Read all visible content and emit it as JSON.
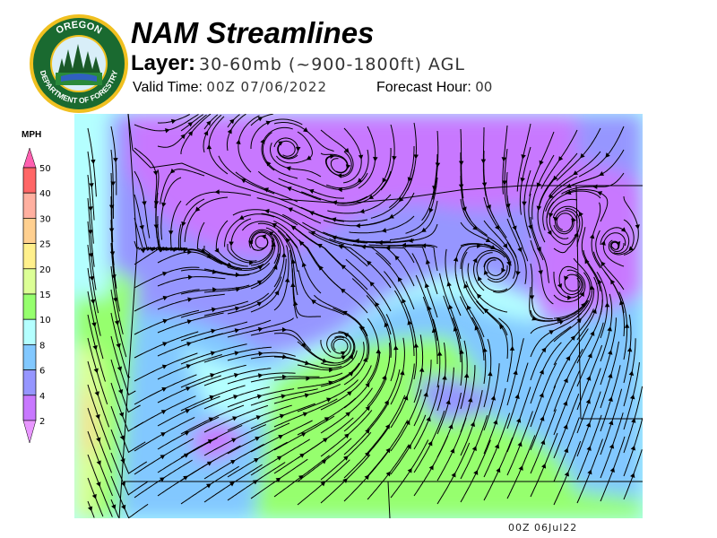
{
  "header": {
    "title": "NAM Streamlines",
    "layer_label": "Layer:",
    "layer_value": "30-60mb (~900-1800ft) AGL",
    "valid_label": "Valid Time:",
    "valid_value": "00Z 07/06/2022",
    "forecast_label": "Forecast Hour:",
    "forecast_value": "00"
  },
  "logo": {
    "top_text": "OREGON",
    "bottom_text": "DEPARTMENT OF FORESTRY"
  },
  "legend": {
    "units": "MPH",
    "ticks": [
      "50",
      "40",
      "30",
      "25",
      "20",
      "15",
      "10",
      "8",
      "6",
      "4",
      "2"
    ],
    "colors": [
      "#ff6666",
      "#ffb0a0",
      "#ffd090",
      "#fff08c",
      "#dcff96",
      "#96ff6e",
      "#b4ffff",
      "#82c8ff",
      "#9696ff",
      "#c878ff"
    ],
    "over_color": "#ff60b0",
    "under_color": "#e896ff"
  },
  "map": {
    "timestamp": "00Z 06Jul22"
  }
}
